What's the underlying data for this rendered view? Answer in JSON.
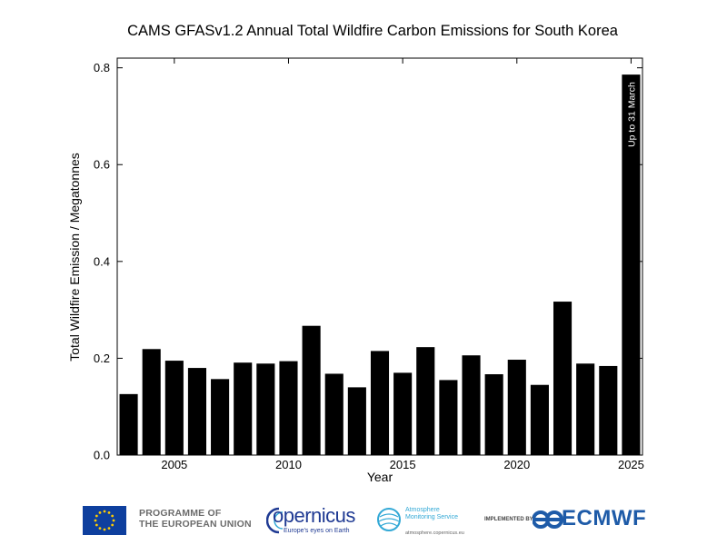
{
  "chart_data": {
    "type": "bar",
    "title": "CAMS GFASv1.2 Annual Total Wildfire Carbon Emissions for South Korea",
    "xlabel": "Year",
    "ylabel": "Total Wildfire Emission / Megatonnes",
    "ylim": [
      0,
      0.82
    ],
    "xlim": [
      2002.5,
      2025.5
    ],
    "yticks": [
      "0.0",
      "0.2",
      "0.4",
      "0.6",
      "0.8"
    ],
    "ytick_values": [
      0.0,
      0.2,
      0.4,
      0.6,
      0.8
    ],
    "xticks": [
      "2005",
      "2010",
      "2015",
      "2020",
      "2025"
    ],
    "xtick_values": [
      2005,
      2010,
      2015,
      2020,
      2025
    ],
    "categories": [
      2003,
      2004,
      2005,
      2006,
      2007,
      2008,
      2009,
      2010,
      2011,
      2012,
      2013,
      2014,
      2015,
      2016,
      2017,
      2018,
      2019,
      2020,
      2021,
      2022,
      2023,
      2024,
      2025
    ],
    "values": [
      0.126,
      0.219,
      0.195,
      0.18,
      0.157,
      0.191,
      0.189,
      0.194,
      0.267,
      0.168,
      0.14,
      0.215,
      0.17,
      0.223,
      0.155,
      0.206,
      0.167,
      0.197,
      0.145,
      0.317,
      0.189,
      0.184,
      0.786
    ],
    "annotation": "Up to 31 March",
    "bar_color": "#000000",
    "annotation_color": "#ffffff"
  },
  "footer": {
    "eu_line1": "PROGRAMME OF",
    "eu_line2": "THE EUROPEAN UNION",
    "copernicus_word": "opernicus",
    "copernicus_tagline": "Europe's eyes on Earth",
    "ams_line1": "Atmosphere",
    "ams_line2": "Monitoring Service",
    "ams_url": "atmosphere.copernicus.eu",
    "implemented_by": "IMPLEMENTED BY",
    "ecmwf_word": "ECMWF",
    "colors": {
      "eu_blue": "#0e3f9e",
      "eu_star": "#ffcc00",
      "copernicus_blue": "#1f3a93",
      "ams_blue": "#33a9d6",
      "ecmwf_blue": "#1e5ba8"
    }
  }
}
